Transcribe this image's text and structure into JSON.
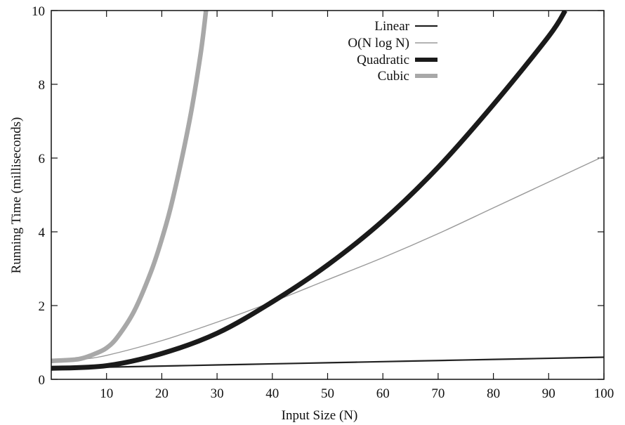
{
  "chart_data": {
    "type": "line",
    "title": "",
    "xlabel": "Input Size (N)",
    "ylabel": "Running Time (milliseconds)",
    "xlim": [
      0,
      100
    ],
    "ylim": [
      0,
      10
    ],
    "xticks": [
      10,
      20,
      30,
      40,
      50,
      60,
      70,
      80,
      90,
      100
    ],
    "yticks": [
      0,
      2,
      4,
      6,
      8,
      10
    ],
    "grid": false,
    "legend_position": "top-right",
    "series": [
      {
        "name": "Linear",
        "color": "#222222",
        "x": [
          0,
          10,
          20,
          30,
          40,
          50,
          60,
          70,
          80,
          90,
          100
        ],
        "y": [
          0.3,
          0.33,
          0.36,
          0.39,
          0.42,
          0.45,
          0.48,
          0.51,
          0.54,
          0.57,
          0.6
        ]
      },
      {
        "name": "O(N log N)",
        "color": "#9a9a9a",
        "x": [
          0,
          5,
          10,
          20,
          30,
          40,
          50,
          60,
          70,
          80,
          90,
          100
        ],
        "y": [
          0.5,
          0.54,
          0.65,
          1.05,
          1.55,
          2.1,
          2.7,
          3.3,
          3.95,
          4.65,
          5.35,
          6.05
        ]
      },
      {
        "name": "Quadratic",
        "color": "#1a1a1a",
        "x": [
          0,
          10,
          20,
          30,
          40,
          50,
          60,
          70,
          80,
          90,
          93
        ],
        "y": [
          0.3,
          0.37,
          0.7,
          1.25,
          2.1,
          3.1,
          4.3,
          5.75,
          7.45,
          9.3,
          10
        ]
      },
      {
        "name": "Cubic",
        "color": "#a8a8a8",
        "x": [
          0,
          5,
          8,
          10,
          12,
          15,
          18,
          20,
          22,
          25,
          27,
          28
        ],
        "y": [
          0.5,
          0.55,
          0.7,
          0.85,
          1.15,
          1.85,
          2.9,
          3.8,
          4.9,
          7.0,
          8.8,
          10
        ]
      }
    ]
  }
}
